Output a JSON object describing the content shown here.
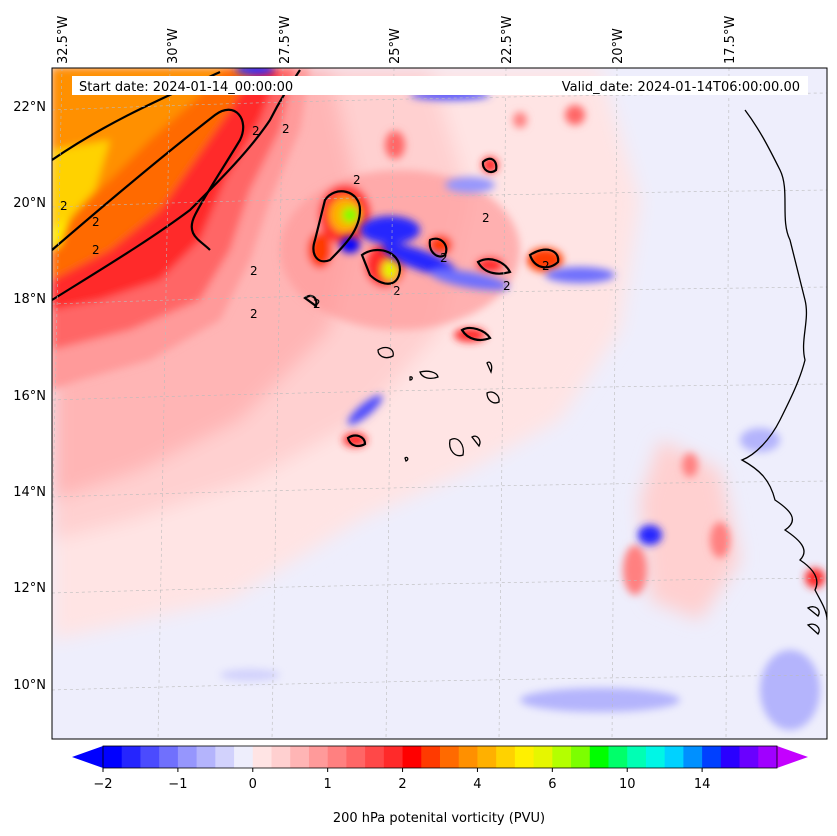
{
  "header": {
    "start_date": "Start date: 2024-01-14_00:00:00",
    "valid_date": "Valid_date: 2024-01-14T06:00:00.00"
  },
  "map": {
    "lon_labels": [
      "32.5°W",
      "30°W",
      "27.5°W",
      "25°W",
      "22.5°W",
      "20°W",
      "17.5°W"
    ],
    "lat_labels": [
      "22°N",
      "20°N",
      "18°N",
      "16°N",
      "14°N",
      "12°N",
      "10°N"
    ],
    "contour_label": "2",
    "colors": {
      "background": "#eeeefc",
      "coast": "#000000"
    }
  },
  "colorbar": {
    "title": "200 hPa potenital vorticity (PVU)",
    "tick_labels": [
      "−2",
      "−1",
      "0",
      "1",
      "2",
      "4",
      "6",
      "10",
      "14"
    ],
    "colors": [
      "#0000ff",
      "#2525fe",
      "#4b4bfe",
      "#7070fd",
      "#9696fd",
      "#b4b4fc",
      "#d2d2fc",
      "#eeeefc",
      "#ffe4e4",
      "#ffd0d0",
      "#ffb5b5",
      "#ff9a9a",
      "#ff8080",
      "#ff6666",
      "#ff4848",
      "#ff2a2a",
      "#ff0000",
      "#ff3a00",
      "#ff6a00",
      "#ff9000",
      "#ffb000",
      "#ffd200",
      "#fff000",
      "#e6f600",
      "#b4ff00",
      "#7cff00",
      "#00ff00",
      "#00ff6a",
      "#00ffb4",
      "#00f6e6",
      "#00d2ff",
      "#0090ff",
      "#0040ff",
      "#2a00ff",
      "#6a00ff",
      "#a000ff"
    ],
    "under_color": "#0000ff",
    "over_color": "#c400ff"
  }
}
